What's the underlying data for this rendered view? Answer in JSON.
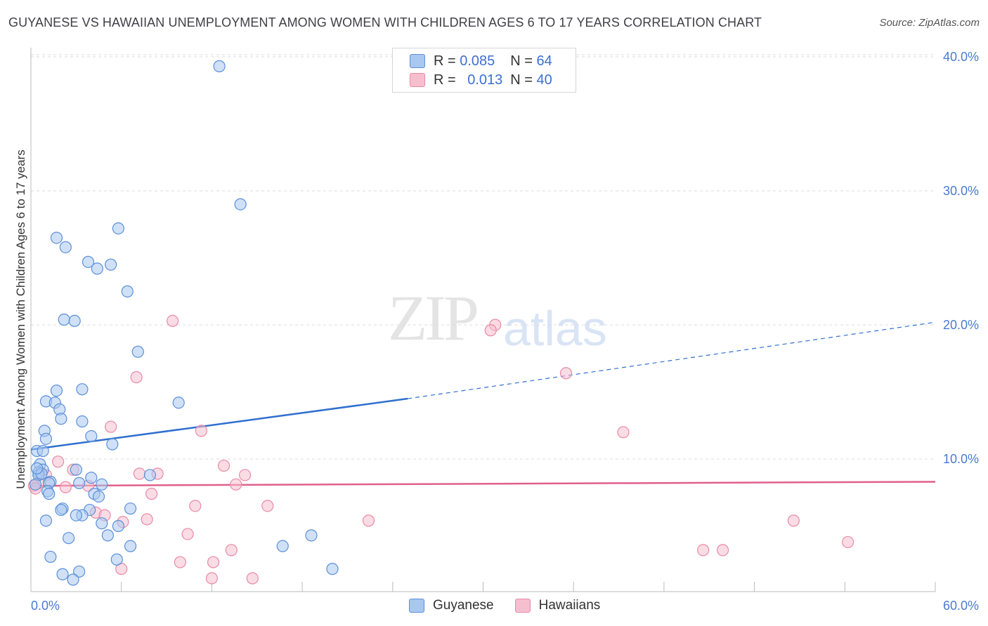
{
  "title": "GUYANESE VS HAWAIIAN UNEMPLOYMENT AMONG WOMEN WITH CHILDREN AGES 6 TO 17 YEARS CORRELATION CHART",
  "source": "Source: ZipAtlas.com",
  "watermark": {
    "zip": "ZIP",
    "atlas": "atlas"
  },
  "legend": {
    "guyanese": {
      "r_label": "R =",
      "r_value": "0.085",
      "n_label": "N =",
      "n_value": "64"
    },
    "hawaiians": {
      "r_label": "R =",
      "r_value": "0.013",
      "n_label": "N =",
      "n_value": "40"
    }
  },
  "colors": {
    "guyanese_fill": "#a9c8f0",
    "guyanese_stroke": "#5b8fd8",
    "guyanese_line": "#2f6fce",
    "hawaiians_fill": "#f6bfd0",
    "hawaiians_stroke": "#e88aa8",
    "hawaiians_line": "#e0608a",
    "tick": "#4a7bd0",
    "grid": "#dddddd"
  },
  "chart_data": {
    "type": "scatter",
    "title": "GUYANESE VS HAWAIIAN UNEMPLOYMENT AMONG WOMEN WITH CHILDREN AGES 6 TO 17 YEARS CORRELATION CHART",
    "xlabel": "",
    "ylabel": "Unemployment Among Women with Children Ages 6 to 17 years",
    "xlim": [
      0,
      60
    ],
    "ylim": [
      0,
      42
    ],
    "x_tick_labels": [
      "0.0%",
      "60.0%"
    ],
    "y_ticks": [
      10,
      20,
      30,
      40
    ],
    "y_tick_labels": [
      "10.0%",
      "20.0%",
      "30.0%",
      "40.0%"
    ],
    "grid": true,
    "legend_position": "bottom-center",
    "series": [
      {
        "name": "Guyanese",
        "r": 0.085,
        "n": 64,
        "trend": {
          "x0": 0,
          "y0": 10.7,
          "x1": 25,
          "y1": 14.5,
          "dashed_to_x": 60,
          "dashed_to_y": 20.2
        },
        "points": [
          [
            12.5,
            39.3
          ],
          [
            13.9,
            29.0
          ],
          [
            5.8,
            27.2
          ],
          [
            1.7,
            26.5
          ],
          [
            2.3,
            25.8
          ],
          [
            3.8,
            24.7
          ],
          [
            5.3,
            24.5
          ],
          [
            4.4,
            24.2
          ],
          [
            6.4,
            22.5
          ],
          [
            2.2,
            20.4
          ],
          [
            2.9,
            20.3
          ],
          [
            7.1,
            18.0
          ],
          [
            3.4,
            15.2
          ],
          [
            1.7,
            15.1
          ],
          [
            1.0,
            14.3
          ],
          [
            1.6,
            14.2
          ],
          [
            9.8,
            14.2
          ],
          [
            1.9,
            13.7
          ],
          [
            2.0,
            13.0
          ],
          [
            3.4,
            12.8
          ],
          [
            0.9,
            12.1
          ],
          [
            4.0,
            11.7
          ],
          [
            1.0,
            11.5
          ],
          [
            5.4,
            11.1
          ],
          [
            0.4,
            10.6
          ],
          [
            0.8,
            10.6
          ],
          [
            0.6,
            9.6
          ],
          [
            0.8,
            9.2
          ],
          [
            3.0,
            9.2
          ],
          [
            0.5,
            9.0
          ],
          [
            0.5,
            8.8
          ],
          [
            7.9,
            8.8
          ],
          [
            4.0,
            8.6
          ],
          [
            1.3,
            8.3
          ],
          [
            1.2,
            8.2
          ],
          [
            3.2,
            8.2
          ],
          [
            4.7,
            8.1
          ],
          [
            0.3,
            8.1
          ],
          [
            1.1,
            7.6
          ],
          [
            1.2,
            7.4
          ],
          [
            4.2,
            7.4
          ],
          [
            4.5,
            7.2
          ],
          [
            2.1,
            6.3
          ],
          [
            6.6,
            6.3
          ],
          [
            2.0,
            6.2
          ],
          [
            3.9,
            6.2
          ],
          [
            3.4,
            5.8
          ],
          [
            3.0,
            5.8
          ],
          [
            1.0,
            5.4
          ],
          [
            4.7,
            5.2
          ],
          [
            5.8,
            5.0
          ],
          [
            5.1,
            4.3
          ],
          [
            2.5,
            4.1
          ],
          [
            18.6,
            4.3
          ],
          [
            6.6,
            3.5
          ],
          [
            16.7,
            3.5
          ],
          [
            1.3,
            2.7
          ],
          [
            5.7,
            2.5
          ],
          [
            20.0,
            1.8
          ],
          [
            3.2,
            1.6
          ],
          [
            2.1,
            1.4
          ],
          [
            2.8,
            1.0
          ],
          [
            0.7,
            8.9
          ],
          [
            0.4,
            9.3
          ]
        ]
      },
      {
        "name": "Hawaiians",
        "r": 0.013,
        "n": 40,
        "trend": {
          "x0": 0,
          "y0": 8.0,
          "x1": 60,
          "y1": 8.3
        },
        "points": [
          [
            9.4,
            20.3
          ],
          [
            30.8,
            20.0
          ],
          [
            30.5,
            19.6
          ],
          [
            35.5,
            16.4
          ],
          [
            7.0,
            16.1
          ],
          [
            5.3,
            12.4
          ],
          [
            11.3,
            12.1
          ],
          [
            39.3,
            12.0
          ],
          [
            1.8,
            9.8
          ],
          [
            12.8,
            9.5
          ],
          [
            8.4,
            8.9
          ],
          [
            7.2,
            8.9
          ],
          [
            14.2,
            8.8
          ],
          [
            2.8,
            9.2
          ],
          [
            1.0,
            8.8
          ],
          [
            0.5,
            8.2
          ],
          [
            13.6,
            8.1
          ],
          [
            3.8,
            8.0
          ],
          [
            2.3,
            7.9
          ],
          [
            0.2,
            8.0
          ],
          [
            8.0,
            7.4
          ],
          [
            10.9,
            6.5
          ],
          [
            15.7,
            6.5
          ],
          [
            4.3,
            6.0
          ],
          [
            4.9,
            5.8
          ],
          [
            7.7,
            5.5
          ],
          [
            6.1,
            5.3
          ],
          [
            22.4,
            5.4
          ],
          [
            50.6,
            5.4
          ],
          [
            10.4,
            4.4
          ],
          [
            54.2,
            3.8
          ],
          [
            13.3,
            3.2
          ],
          [
            44.6,
            3.2
          ],
          [
            45.9,
            3.2
          ],
          [
            9.9,
            2.3
          ],
          [
            12.1,
            2.3
          ],
          [
            6.0,
            1.8
          ],
          [
            12.0,
            1.1
          ],
          [
            14.7,
            1.1
          ],
          [
            0.3,
            7.8
          ]
        ]
      }
    ]
  }
}
